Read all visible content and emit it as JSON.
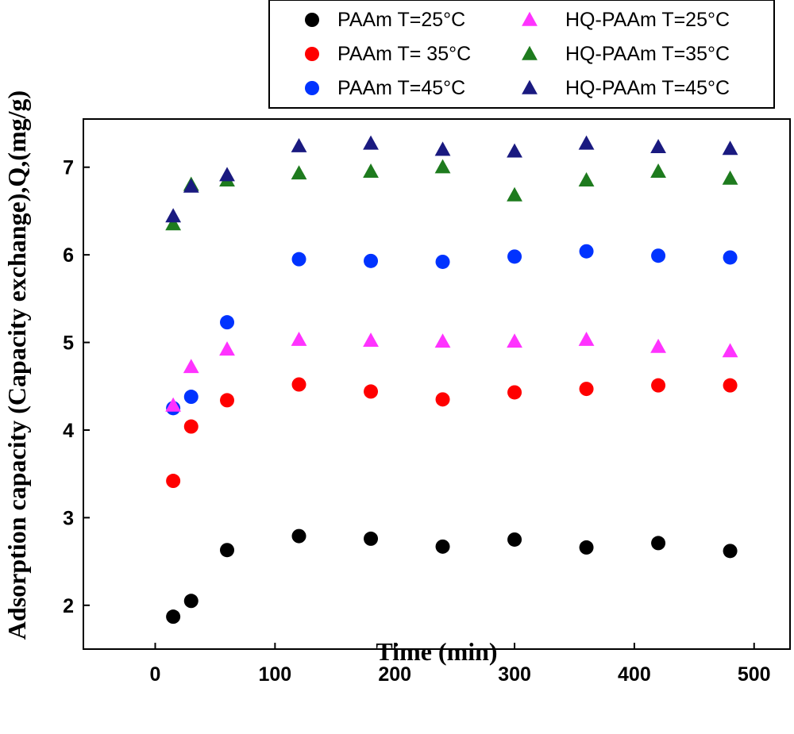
{
  "chart_data": {
    "type": "scatter",
    "title": "",
    "xlabel": "Time (min)",
    "ylabel": "Adsorption capacity (Capacity exchange),Q,(mg/g)",
    "xlim": [
      -60,
      530
    ],
    "ylim": [
      1.5,
      7.55
    ],
    "xticks": [
      0,
      100,
      200,
      300,
      400,
      500
    ],
    "yticks": [
      2,
      3,
      4,
      5,
      6,
      7
    ],
    "legend_position": "top-right",
    "grid": false,
    "series": [
      {
        "name": "PAAm T=25°C",
        "marker": "circle",
        "color": "#000000",
        "x": [
          15,
          30,
          60,
          120,
          180,
          240,
          300,
          360,
          420,
          480
        ],
        "y": [
          1.87,
          2.05,
          2.63,
          2.79,
          2.76,
          2.67,
          2.75,
          2.66,
          2.71,
          2.62
        ]
      },
      {
        "name": "PAAm T= 35°C",
        "marker": "circle",
        "color": "#ff0000",
        "x": [
          15,
          30,
          60,
          120,
          180,
          240,
          300,
          360,
          420,
          480
        ],
        "y": [
          3.42,
          4.04,
          4.34,
          4.52,
          4.44,
          4.35,
          4.43,
          4.47,
          4.51,
          4.51
        ]
      },
      {
        "name": "PAAm T=45°C",
        "marker": "circle",
        "color": "#0033ff",
        "x": [
          15,
          30,
          60,
          120,
          180,
          240,
          300,
          360,
          420,
          480
        ],
        "y": [
          4.25,
          4.38,
          5.23,
          5.95,
          5.93,
          5.92,
          5.98,
          6.04,
          5.99,
          5.97
        ]
      },
      {
        "name": "HQ-PAAm T=25°C",
        "marker": "triangle",
        "color": "#ff33ff",
        "x": [
          15,
          30,
          60,
          120,
          180,
          240,
          300,
          360,
          420,
          480
        ],
        "y": [
          4.28,
          4.72,
          4.92,
          5.03,
          5.02,
          5.01,
          5.01,
          5.03,
          4.95,
          4.9
        ]
      },
      {
        "name": "HQ-PAAm T=35°C",
        "marker": "triangle",
        "color": "#1e7b1e",
        "x": [
          15,
          30,
          60,
          120,
          180,
          240,
          300,
          360,
          420,
          480
        ],
        "y": [
          6.35,
          6.8,
          6.85,
          6.93,
          6.95,
          7.0,
          6.68,
          6.85,
          6.95,
          6.87
        ]
      },
      {
        "name": "HQ-PAAm T=45°C",
        "marker": "triangle",
        "color": "#1a1a80",
        "x": [
          15,
          30,
          60,
          120,
          180,
          240,
          300,
          360,
          420,
          480
        ],
        "y": [
          6.44,
          6.78,
          6.91,
          7.24,
          7.27,
          7.2,
          7.18,
          7.27,
          7.23,
          7.21
        ]
      }
    ]
  }
}
